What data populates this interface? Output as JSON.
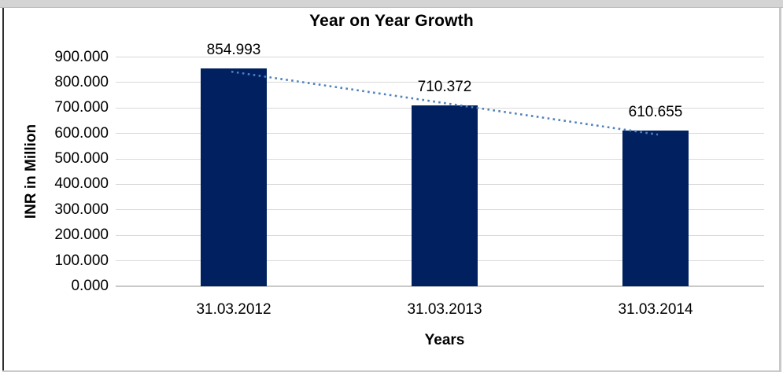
{
  "chart_data": {
    "type": "bar",
    "title": "Year on Year Growth",
    "xlabel": "Years",
    "ylabel": "INR in Million",
    "categories": [
      "31.03.2012",
      "31.03.2013",
      "31.03.2014"
    ],
    "values": [
      854.993,
      710.372,
      610.655
    ],
    "data_labels": [
      "854.993",
      "710.372",
      "610.655"
    ],
    "ylim": [
      0,
      900
    ],
    "ytick_interval": 100,
    "ytick_labels": [
      "0.000",
      "100.000",
      "200.000",
      "300.000",
      "400.000",
      "500.000",
      "600.000",
      "700.000",
      "800.000",
      "900.000"
    ],
    "grid": "horizontal",
    "legend": "none",
    "bar_color": "#002060",
    "gridline_color": "#D9D9D9",
    "axis_line_color": "#C9C9C9",
    "trendline": {
      "type": "linear",
      "style": "dotted",
      "color": "#4F81BD"
    }
  }
}
